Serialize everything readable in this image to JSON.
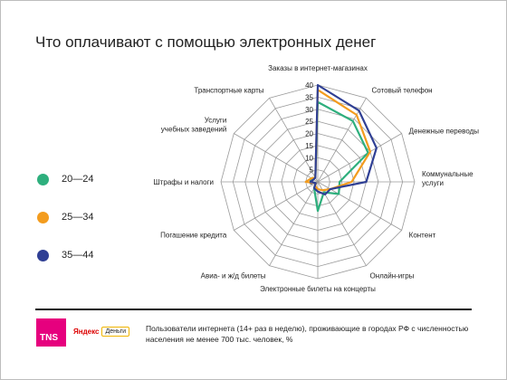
{
  "title": "Что оплачивают с помощью электронных денег",
  "legend": [
    {
      "label": "20—24",
      "color": "#2eaf7d"
    },
    {
      "label": "25—34",
      "color": "#f39c1e"
    },
    {
      "label": "35—44",
      "color": "#2f3f94"
    }
  ],
  "chart_data": {
    "type": "radar",
    "categories": [
      "Заказы в интернет-магазинах",
      "Сотовый телефон",
      "Денежные переводы",
      "Коммунальные услуги",
      "Контент",
      "Онлайн-игры",
      "Электронные билеты на концерты",
      "Авиа- и ж/д билеты",
      "Погашение кредита",
      "Штрафы и налоги",
      "Услуги учебных заведений",
      "Транспортные карты"
    ],
    "ticks": [
      "0",
      "5",
      "10",
      "15",
      "20",
      "25",
      "30",
      "35",
      "40"
    ],
    "range": [
      0,
      40
    ],
    "grid": true,
    "series": [
      {
        "name": "20—24",
        "color": "#2eaf7d",
        "values": [
          33,
          29,
          24,
          9,
          10,
          5,
          12,
          3,
          1,
          3,
          3,
          2
        ]
      },
      {
        "name": "25—34",
        "color": "#f39c1e",
        "values": [
          38,
          32,
          25,
          14,
          6,
          4,
          3,
          2,
          1,
          5,
          3,
          2
        ]
      },
      {
        "name": "35—44",
        "color": "#2f3f94",
        "values": [
          40,
          34,
          28,
          20,
          6,
          6,
          4,
          3,
          1,
          3,
          2,
          2
        ]
      }
    ]
  },
  "footer": {
    "note": "Пользователи интернета (14+ раз в неделю), проживающие в городах РФ с численностью населения не менее 700 тыс. человек, %",
    "tns_logo": "TNS",
    "yandex_word": "Яндекс",
    "dengi_badge": "Деньги"
  }
}
